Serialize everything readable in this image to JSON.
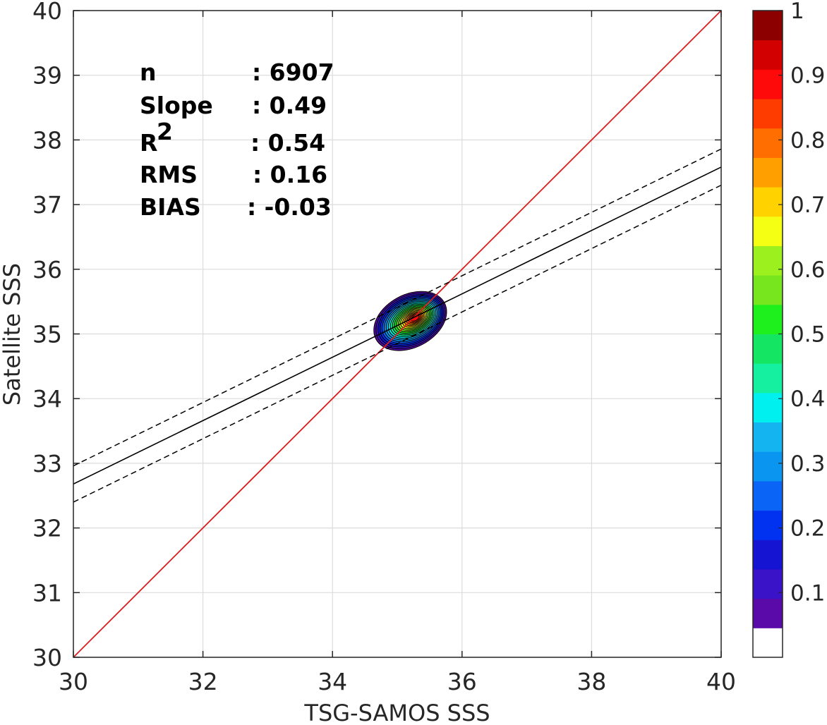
{
  "chart_data": {
    "type": "density-contour-scatter",
    "xlabel": "TSG-SAMOS SSS",
    "ylabel": "Satellite SSS",
    "xlim": [
      30,
      40
    ],
    "ylim": [
      30,
      40
    ],
    "xticks": [
      "30",
      "32",
      "34",
      "36",
      "38",
      "40"
    ],
    "yticks": [
      "30",
      "31",
      "32",
      "33",
      "34",
      "35",
      "36",
      "37",
      "38",
      "39",
      "40"
    ],
    "grid": true,
    "stats": [
      {
        "key": "n",
        "value": ": 6907"
      },
      {
        "key": "Slope",
        "value": ": 0.49"
      },
      {
        "key": "R",
        "sup": "2",
        "value": ": 0.54"
      },
      {
        "key": "RMS",
        "value": ": 0.16"
      },
      {
        "key": "BIAS",
        "value": ": -0.03"
      }
    ],
    "one_to_one_line": {
      "x": [
        30,
        40
      ],
      "y": [
        30,
        40
      ],
      "color": "#d91e1e"
    },
    "fit_line": {
      "x": [
        30,
        40
      ],
      "y": [
        32.68,
        37.58
      ],
      "color": "#000000"
    },
    "fit_bounds": [
      {
        "x": [
          30,
          40
        ],
        "y": [
          32.96,
          37.86
        ]
      },
      {
        "x": [
          30,
          40
        ],
        "y": [
          32.4,
          37.3
        ]
      }
    ],
    "density": {
      "center": [
        35.2,
        35.2
      ],
      "levels": [
        0.05,
        0.1,
        0.15,
        0.2,
        0.25,
        0.3,
        0.35,
        0.4,
        0.45,
        0.5,
        0.55,
        0.6,
        0.65,
        0.7,
        0.75,
        0.8,
        0.85,
        0.9,
        0.95
      ],
      "extent_at_lowest": {
        "x": [
          34.55,
          35.85
        ],
        "y": [
          34.7,
          35.72
        ]
      }
    },
    "colorbar": {
      "range": [
        0,
        1
      ],
      "ticks": [
        "0.1",
        "0.2",
        "0.3",
        "0.4",
        "0.5",
        "0.6",
        "0.7",
        "0.8",
        "0.9",
        "1"
      ],
      "tick_values": [
        0.1,
        0.2,
        0.3,
        0.4,
        0.5,
        0.6,
        0.7,
        0.8,
        0.9,
        1.0
      ],
      "colors": [
        "#ffffff",
        "#5a0aa8",
        "#3a12c8",
        "#1414d2",
        "#0032f0",
        "#0a64f5",
        "#0a96f0",
        "#14b4f0",
        "#00f0f0",
        "#14f0a0",
        "#14e664",
        "#1ef01e",
        "#78e61e",
        "#9bf01e",
        "#f5ff14",
        "#ffd200",
        "#ffa000",
        "#ff6e00",
        "#ff3c00",
        "#ff0a0a",
        "#d20000",
        "#8c0000"
      ]
    }
  }
}
